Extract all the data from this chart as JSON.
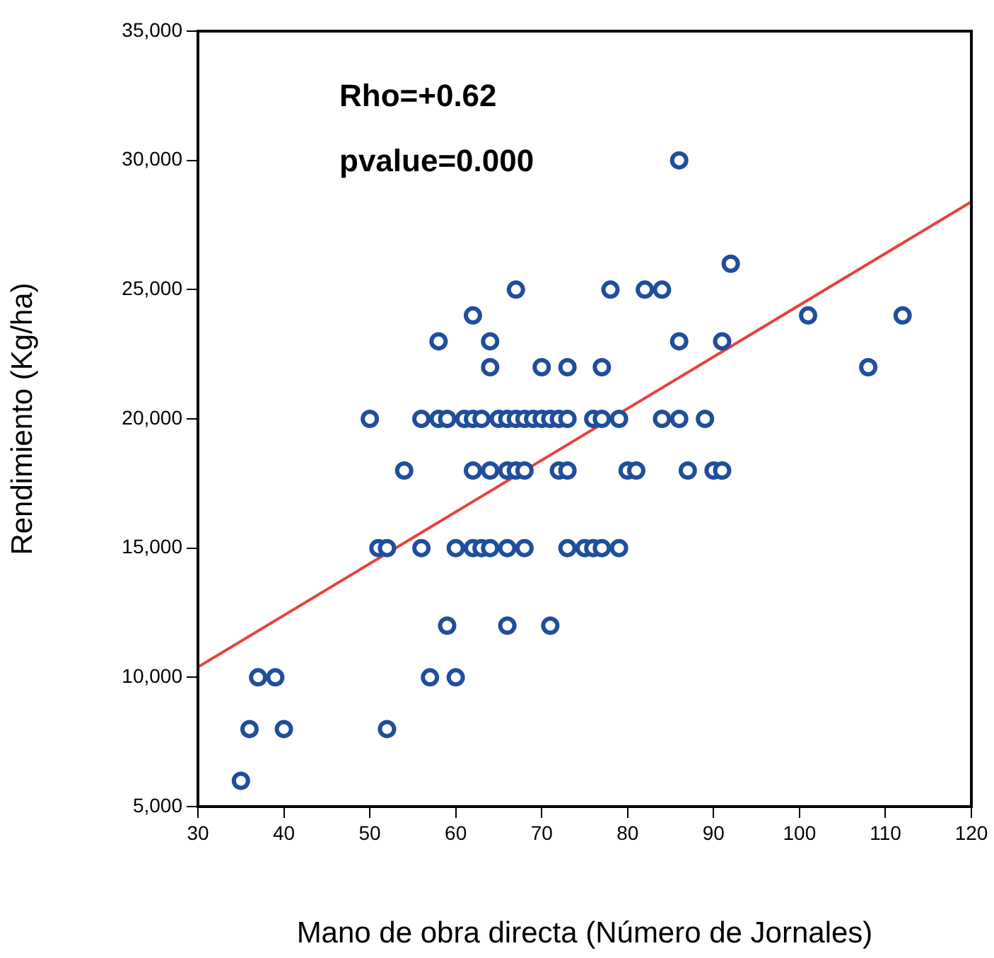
{
  "chart_data": {
    "type": "scatter",
    "xlabel": "Mano de obra directa (Número de Jornales)",
    "ylabel": "Rendimiento (Kg/ha)",
    "annotations": [
      "Rho=+0.62",
      "pvalue=0.000"
    ],
    "xlim": [
      30,
      120
    ],
    "xticks": [
      30,
      40,
      50,
      60,
      70,
      80,
      90,
      100,
      110,
      120
    ],
    "ylim": [
      5000,
      35000
    ],
    "yticks": [
      {
        "value": 5000,
        "label": "5,000"
      },
      {
        "value": 10000,
        "label": "10,000"
      },
      {
        "value": 15000,
        "label": "15,000"
      },
      {
        "value": 20000,
        "label": "20,000"
      },
      {
        "value": 25000,
        "label": "25,000"
      },
      {
        "value": 30000,
        "label": "30,000"
      },
      {
        "value": 35000,
        "label": "35,000"
      }
    ],
    "grid": false,
    "legend": false,
    "marker": "circle",
    "series": [
      {
        "color": "#1f4e9c",
        "x": [
          35,
          36,
          40,
          52,
          37,
          39,
          57,
          60,
          59,
          66,
          71,
          51,
          52,
          56,
          60,
          62,
          63,
          64,
          66,
          68,
          73,
          75,
          76,
          77,
          79,
          54,
          62,
          64,
          66,
          67,
          68,
          72,
          73,
          80,
          81,
          87,
          90,
          91,
          50,
          56,
          58,
          59,
          61,
          62,
          63,
          65,
          66,
          67,
          68,
          69,
          70,
          71,
          72,
          73,
          76,
          77,
          79,
          84,
          86,
          89,
          64,
          70,
          73,
          77,
          108,
          58,
          64,
          86,
          91,
          62,
          101,
          112,
          67,
          78,
          82,
          84,
          92,
          86
        ],
        "values": [
          6000,
          8000,
          8000,
          8000,
          10000,
          10000,
          10000,
          10000,
          12000,
          12000,
          12000,
          15000,
          15000,
          15000,
          15000,
          15000,
          15000,
          15000,
          15000,
          15000,
          15000,
          15000,
          15000,
          15000,
          15000,
          18000,
          18000,
          18000,
          18000,
          18000,
          18000,
          18000,
          18000,
          18000,
          18000,
          18000,
          18000,
          18000,
          20000,
          20000,
          20000,
          20000,
          20000,
          20000,
          20000,
          20000,
          20000,
          20000,
          20000,
          20000,
          20000,
          20000,
          20000,
          20000,
          20000,
          20000,
          20000,
          20000,
          20000,
          20000,
          22000,
          22000,
          22000,
          22000,
          22000,
          23000,
          23000,
          23000,
          23000,
          24000,
          24000,
          24000,
          25000,
          25000,
          25000,
          25000,
          26000,
          30000
        ]
      },
      {
        "type": "line",
        "color": "#e8413c",
        "marker": "none",
        "line_style": "solid",
        "x": [
          30,
          120
        ],
        "values": [
          10400,
          28400
        ]
      }
    ]
  }
}
